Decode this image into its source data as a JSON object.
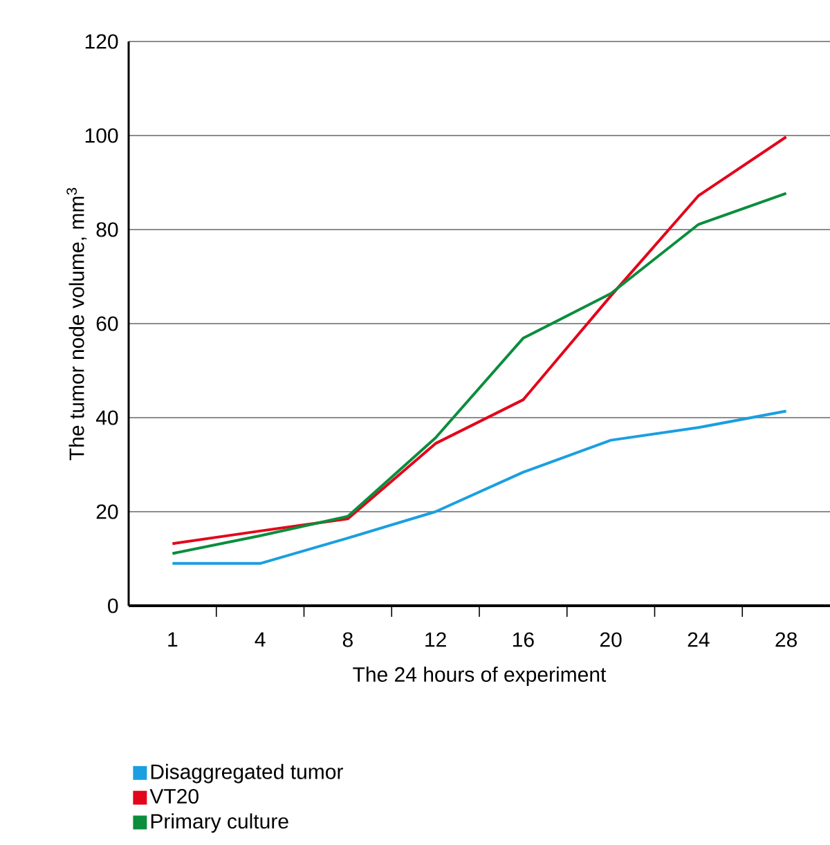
{
  "chart_data": {
    "type": "line",
    "xlabel": "The 24 hours of experiment",
    "ylabel": "The tumor node volume, mm$^{3}$",
    "categories": [
      "1",
      "4",
      "8",
      "12",
      "16",
      "20",
      "24",
      "28"
    ],
    "series": [
      {
        "name": "Disaggregated tumor",
        "color": "#1a9fe0",
        "values": [
          9.0,
          9.0,
          14.4,
          20.0,
          28.4,
          35.2,
          37.9,
          41.4
        ]
      },
      {
        "name": "VT20",
        "color": "#e3051b",
        "values": [
          13.2,
          15.9,
          18.5,
          34.5,
          43.8,
          65.9,
          87.2,
          99.7
        ]
      },
      {
        "name": "Primary culture",
        "color": "#0b8d3d",
        "values": [
          11.1,
          14.9,
          19.0,
          35.7,
          56.9,
          66.4,
          81.1,
          87.7
        ]
      }
    ],
    "ylim": [
      0,
      120
    ],
    "yticks": [
      0,
      20,
      40,
      60,
      80,
      100,
      120
    ],
    "grid": "y",
    "legend": "bottom",
    "marker": "none",
    "line_style": "solid"
  }
}
